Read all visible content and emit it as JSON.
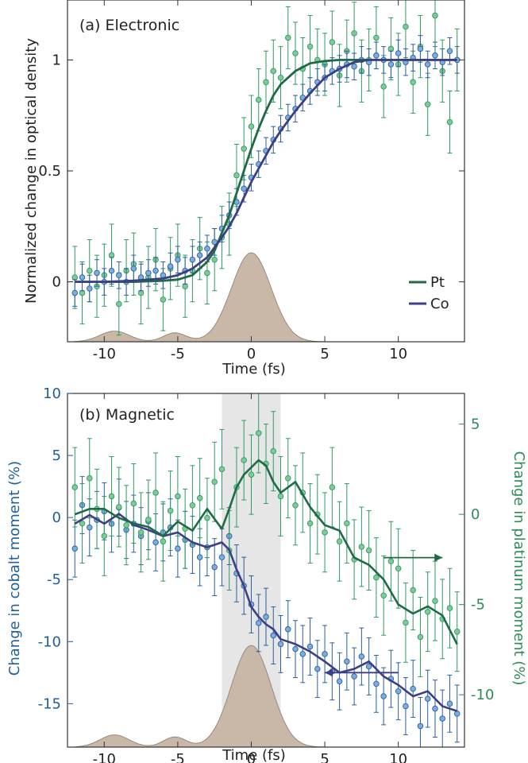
{
  "colors": {
    "pt": "#1f6b45",
    "pt_marker": "#7ecb96",
    "pt_bar": "#2e9a62",
    "co": "#3c3f85",
    "co_marker": "#7aaede",
    "co_bar": "#2b5f9e",
    "pulse": "#c9b8a8",
    "left_axis": "#1f5f9a",
    "right_axis": "#2e8b57",
    "shade": "#e6e6e6"
  },
  "chart_data": [
    {
      "type": "line",
      "panel_label": "(a) Electronic",
      "xlabel": "Time (fs)",
      "ylabel": "Normalized change in optical density",
      "xlim": [
        -12.5,
        14.5
      ],
      "ylim": [
        -0.27,
        1.27
      ],
      "xticks": [
        -10,
        -5,
        0,
        5,
        10
      ],
      "xtick_labels": [
        "-10",
        "-5",
        "0",
        "5",
        "10"
      ],
      "yticks": [
        0,
        0.5,
        1
      ],
      "ytick_labels": [
        "0",
        "0.5",
        "1"
      ],
      "grid": false,
      "legend_position": "lower-right",
      "series": [
        {
          "name": "Pt",
          "kind": "fit",
          "x": [
            -12,
            -10,
            -8,
            -6,
            -5,
            -4,
            -3,
            -2.5,
            -2,
            -1.5,
            -1,
            -0.5,
            0,
            0.5,
            1,
            1.5,
            2,
            3,
            4,
            5,
            6,
            8,
            10,
            12,
            14
          ],
          "y": [
            0,
            0,
            0,
            0.005,
            0.01,
            0.03,
            0.09,
            0.14,
            0.22,
            0.3,
            0.4,
            0.5,
            0.6,
            0.69,
            0.77,
            0.84,
            0.89,
            0.95,
            0.985,
            0.995,
            1,
            1,
            1,
            1,
            1
          ]
        },
        {
          "name": "Co",
          "kind": "fit",
          "x": [
            -12,
            -10,
            -8,
            -6,
            -5,
            -4,
            -3,
            -2,
            -1.5,
            -1,
            -0.5,
            0,
            0.5,
            1,
            1.5,
            2,
            3,
            4,
            5,
            6,
            7,
            8,
            10,
            12,
            14
          ],
          "y": [
            0,
            0,
            0.005,
            0.015,
            0.03,
            0.06,
            0.11,
            0.2,
            0.25,
            0.31,
            0.38,
            0.45,
            0.51,
            0.57,
            0.63,
            0.68,
            0.77,
            0.85,
            0.92,
            0.96,
            0.99,
            1,
            1,
            1,
            1
          ]
        },
        {
          "name": "",
          "kind": "points",
          "ref": "Pt",
          "x": [
            -12,
            -11.5,
            -11,
            -10.5,
            -10,
            -9.5,
            -9,
            -8.5,
            -8,
            -7.5,
            -7,
            -6.5,
            -6,
            -5.5,
            -5,
            -4.5,
            -4,
            -3.5,
            -3,
            -2.5,
            -2,
            -1.5,
            -1,
            -0.5,
            0,
            0.5,
            1,
            1.5,
            2,
            2.5,
            3,
            3.5,
            4,
            4.5,
            5,
            5.5,
            6,
            6.5,
            7,
            7.5,
            8,
            8.5,
            9,
            9.5,
            10,
            10.5,
            11,
            11.5,
            12,
            12.5,
            13,
            13.5,
            14
          ],
          "y": [
            0.02,
            -0.05,
            0.05,
            -0.02,
            0.03,
            0.12,
            -0.1,
            0.05,
            0.08,
            -0.05,
            0.02,
            0.1,
            -0.08,
            0.06,
            0.12,
            -0.02,
            0.05,
            0.15,
            0.04,
            0.1,
            0.2,
            0.26,
            0.48,
            0.6,
            0.7,
            0.82,
            0.9,
            0.95,
            0.92,
            1.1,
            1.03,
            0.96,
            1.06,
            1.0,
            0.98,
            1.08,
            0.93,
            1.04,
            1.12,
            0.95,
            1.0,
            1.1,
            0.88,
            1.05,
            0.98,
            1.15,
            0.9,
            1.06,
            0.8,
            1.2,
            0.95,
            0.72,
            1.0
          ],
          "err": [
            0.14,
            0.14,
            0.14,
            0.14,
            0.14,
            0.14,
            0.14,
            0.14,
            0.14,
            0.14,
            0.14,
            0.14,
            0.14,
            0.14,
            0.14,
            0.14,
            0.14,
            0.14,
            0.14,
            0.14,
            0.14,
            0.14,
            0.14,
            0.14,
            0.14,
            0.14,
            0.14,
            0.14,
            0.14,
            0.14,
            0.14,
            0.14,
            0.14,
            0.14,
            0.14,
            0.14,
            0.14,
            0.14,
            0.14,
            0.14,
            0.14,
            0.14,
            0.14,
            0.14,
            0.14,
            0.14,
            0.14,
            0.14,
            0.14,
            0.14,
            0.14,
            0.14,
            0.14
          ]
        },
        {
          "name": "",
          "kind": "points",
          "ref": "Co",
          "x": [
            -12,
            -11.5,
            -11,
            -10.5,
            -10,
            -9.5,
            -9,
            -8.5,
            -8,
            -7.5,
            -7,
            -6.5,
            -6,
            -5.5,
            -5,
            -4.5,
            -4,
            -3.5,
            -3,
            -2.5,
            -2,
            -1.5,
            -1,
            -0.5,
            0,
            0.5,
            1,
            1.5,
            2,
            2.5,
            3,
            3.5,
            4,
            4.5,
            5,
            5.5,
            6,
            6.5,
            7,
            7.5,
            8,
            8.5,
            9,
            9.5,
            10,
            10.5,
            11,
            11.5,
            12,
            12.5,
            13,
            13.5,
            14
          ],
          "y": [
            -0.05,
            0.02,
            -0.03,
            0.04,
            0.0,
            0.05,
            0.03,
            0.0,
            0.06,
            0.02,
            0.04,
            0.05,
            0.03,
            0.07,
            0.1,
            0.05,
            0.1,
            0.12,
            0.15,
            0.18,
            0.24,
            0.3,
            0.36,
            0.42,
            0.47,
            0.53,
            0.59,
            0.64,
            0.69,
            0.74,
            0.78,
            0.83,
            0.86,
            0.9,
            0.92,
            0.95,
            0.96,
            0.98,
            0.97,
            1.0,
            0.99,
            1.02,
            1.0,
            0.98,
            1.03,
            0.99,
            1.01,
            1.05,
            0.98,
            1.02,
            0.99,
            1.04,
            1.0
          ],
          "err": [
            0.06,
            0.06,
            0.06,
            0.06,
            0.06,
            0.06,
            0.06,
            0.06,
            0.06,
            0.06,
            0.06,
            0.06,
            0.06,
            0.06,
            0.06,
            0.06,
            0.06,
            0.06,
            0.06,
            0.06,
            0.06,
            0.06,
            0.06,
            0.06,
            0.06,
            0.06,
            0.06,
            0.06,
            0.06,
            0.06,
            0.06,
            0.06,
            0.06,
            0.06,
            0.06,
            0.06,
            0.06,
            0.06,
            0.06,
            0.06,
            0.06,
            0.06,
            0.06,
            0.06,
            0.06,
            0.06,
            0.06,
            0.06,
            0.06,
            0.06,
            0.06,
            0.06,
            0.06
          ]
        }
      ],
      "legend": [
        {
          "name": "Pt"
        },
        {
          "name": "Co"
        }
      ]
    },
    {
      "type": "line",
      "panel_label": "(b) Magnetic",
      "xlabel": "Time (fs)",
      "ylabel": "Change in cobalt moment (%)",
      "ylabel_right": "Change in platinum moment (%)",
      "xlim": [
        -12.5,
        14.5
      ],
      "ylim": [
        -18.5,
        10
      ],
      "ylim_right": [
        -12.9,
        6.7
      ],
      "xticks": [
        -10,
        -5,
        0,
        5,
        10
      ],
      "xtick_labels": [
        "-10",
        "-5",
        "0",
        "5",
        "10"
      ],
      "yticks": [
        -15,
        -10,
        -5,
        0,
        5,
        10
      ],
      "ytick_labels": [
        "-15",
        "-10",
        "-5",
        "0",
        "5",
        "10"
      ],
      "yticks_right": [
        -10,
        -5,
        0,
        5
      ],
      "ytick_labels_right": [
        "-10",
        "-5",
        "0",
        "5"
      ],
      "shaded_x": [
        -2,
        2
      ],
      "grid": false,
      "series": [
        {
          "name": "",
          "kind": "line",
          "ref": "Co",
          "axis": "left",
          "x": [
            -12,
            -11,
            -10,
            -9,
            -8,
            -7,
            -6,
            -5,
            -4,
            -3,
            -2,
            -1.5,
            -1,
            -0.5,
            0,
            0.5,
            1,
            1.5,
            2,
            3,
            4,
            5,
            6,
            7,
            8,
            9,
            10,
            11,
            12,
            13,
            14
          ],
          "y": [
            -0.5,
            0.2,
            -0.5,
            0.3,
            -0.6,
            -1.0,
            -1.5,
            -1.2,
            -2.0,
            -2.4,
            -2.0,
            -2.6,
            -4.2,
            -5.5,
            -7.2,
            -8.0,
            -8.6,
            -9.0,
            -9.8,
            -10.2,
            -10.8,
            -11.6,
            -12.5,
            -12.2,
            -11.6,
            -12.8,
            -13.5,
            -14.4,
            -14.0,
            -15.2,
            -15.6
          ]
        },
        {
          "name": "",
          "kind": "line",
          "ref": "Pt",
          "axis": "right",
          "x": [
            -12,
            -11,
            -10,
            -9,
            -8,
            -7,
            -6,
            -5,
            -4,
            -3,
            -2,
            -1.5,
            -1,
            -0.5,
            0,
            0.5,
            1,
            1.5,
            2,
            3,
            4,
            5,
            6,
            7,
            8,
            9,
            10,
            11,
            12,
            13,
            14
          ],
          "y": [
            0.0,
            0.3,
            0.3,
            -0.2,
            -0.5,
            -0.7,
            -1.2,
            -0.4,
            -0.9,
            0.3,
            -0.8,
            0.3,
            1.5,
            2.2,
            2.6,
            3.0,
            2.7,
            1.8,
            1.2,
            1.8,
            0.4,
            -0.6,
            -0.9,
            -2.4,
            -2.8,
            -3.6,
            -5.0,
            -5.5,
            -5.1,
            -5.6,
            -7.2
          ]
        },
        {
          "name": "",
          "kind": "points",
          "ref": "Co",
          "axis": "left",
          "x": [
            -12,
            -11.5,
            -11,
            -10.5,
            -10,
            -9.5,
            -9,
            -8.5,
            -8,
            -7.5,
            -7,
            -6.5,
            -6,
            -5.5,
            -5,
            -4.5,
            -4,
            -3.5,
            -3,
            -2.5,
            -2,
            -1.5,
            -1,
            -0.5,
            0,
            0.5,
            1,
            1.5,
            2,
            2.5,
            3,
            3.5,
            4,
            4.5,
            5,
            5.5,
            6,
            6.5,
            7,
            7.5,
            8,
            8.5,
            9,
            9.5,
            10,
            10.5,
            11,
            11.5,
            12,
            12.5,
            13,
            13.5,
            14
          ],
          "y": [
            -2.5,
            1.0,
            -0.8,
            -0.2,
            0.5,
            -0.5,
            0.8,
            -1.0,
            -0.5,
            -1.5,
            -0.3,
            -2.0,
            -1.2,
            -0.8,
            -2.5,
            -1.8,
            -2.2,
            -3.2,
            -2.4,
            -4.0,
            -3.2,
            -1.5,
            -4.5,
            -5.5,
            -7.0,
            -8.5,
            -8.0,
            -9.5,
            -10.2,
            -9.0,
            -10.6,
            -11.0,
            -10.4,
            -12.2,
            -11.0,
            -12.4,
            -13.2,
            -11.6,
            -12.8,
            -11.2,
            -12.0,
            -13.4,
            -14.4,
            -13.0,
            -14.0,
            -15.2,
            -13.8,
            -16.8,
            -14.6,
            -15.4,
            -16.2,
            -15.0,
            -15.8
          ],
          "err": [
            2.3,
            2.3,
            2.3,
            2.3,
            2.3,
            2.3,
            2.3,
            2.3,
            2.3,
            2.3,
            2.3,
            2.3,
            2.3,
            2.3,
            2.3,
            2.3,
            2.3,
            2.3,
            2.3,
            2.3,
            2.3,
            2.3,
            2.3,
            2.3,
            2.3,
            2.3,
            2.3,
            2.3,
            2.3,
            2.3,
            2.3,
            2.3,
            2.3,
            2.3,
            2.3,
            2.3,
            2.3,
            2.3,
            2.3,
            2.3,
            2.3,
            2.3,
            2.3,
            2.3,
            2.3,
            2.3,
            2.3,
            2.3,
            2.3,
            2.3,
            2.3,
            2.3,
            2.3
          ]
        },
        {
          "name": "",
          "kind": "points",
          "ref": "Pt",
          "axis": "right",
          "x": [
            -12,
            -11.5,
            -11,
            -10.5,
            -10,
            -9.5,
            -9,
            -8.5,
            -8,
            -7.5,
            -7,
            -6.5,
            -6,
            -5.5,
            -5,
            -4.5,
            -4,
            -3.5,
            -3,
            -2.5,
            -2,
            -1.5,
            -1,
            -0.5,
            0,
            0.5,
            1,
            1.5,
            2,
            2.5,
            3,
            3.5,
            4,
            4.5,
            5,
            5.5,
            6,
            6.5,
            7,
            7.5,
            8,
            8.5,
            9,
            9.5,
            10,
            10.5,
            11,
            11.5,
            12,
            12.5,
            13,
            13.5,
            14
          ],
          "y": [
            1.5,
            -0.5,
            2.0,
            0.3,
            -1.2,
            1.0,
            0.4,
            -0.6,
            0.6,
            -1.0,
            -0.3,
            1.2,
            -1.5,
            0.2,
            1.0,
            -0.8,
            0.5,
            0.9,
            -0.2,
            1.8,
            2.5,
            -2.0,
            1.5,
            3.0,
            2.2,
            4.5,
            2.8,
            3.5,
            1.0,
            2.0,
            0.5,
            1.2,
            -0.5,
            0.0,
            -1.0,
            1.5,
            -1.5,
            -0.5,
            -2.5,
            -1.8,
            -2.0,
            -3.5,
            -4.5,
            -2.6,
            -3.0,
            -6.0,
            -4.2,
            -6.8,
            -5.4,
            -4.8,
            -5.8,
            -5.2,
            -6.5
          ],
          "err": [
            2.2,
            2.2,
            2.2,
            2.2,
            2.2,
            2.2,
            2.2,
            2.2,
            2.2,
            2.2,
            2.2,
            2.2,
            2.2,
            2.2,
            2.2,
            2.2,
            2.2,
            2.2,
            2.2,
            2.2,
            2.2,
            2.2,
            2.2,
            2.2,
            2.2,
            2.2,
            2.2,
            2.2,
            2.2,
            2.2,
            2.2,
            2.2,
            2.2,
            2.2,
            2.2,
            2.2,
            2.2,
            2.2,
            2.2,
            2.2,
            2.2,
            2.2,
            2.2,
            2.2,
            2.2,
            2.2,
            2.2,
            2.2,
            2.2,
            2.2,
            2.2,
            2.2,
            2.2
          ]
        }
      ],
      "annotations": [
        {
          "type": "arrow",
          "series": "Co",
          "direction": "left",
          "x_from": 10,
          "x_to": 5,
          "y": -12.5,
          "axis": "left"
        },
        {
          "type": "arrow",
          "series": "Pt",
          "direction": "right",
          "x_from": 9,
          "x_to": 13,
          "y": -2.4,
          "axis": "right"
        }
      ]
    }
  ]
}
